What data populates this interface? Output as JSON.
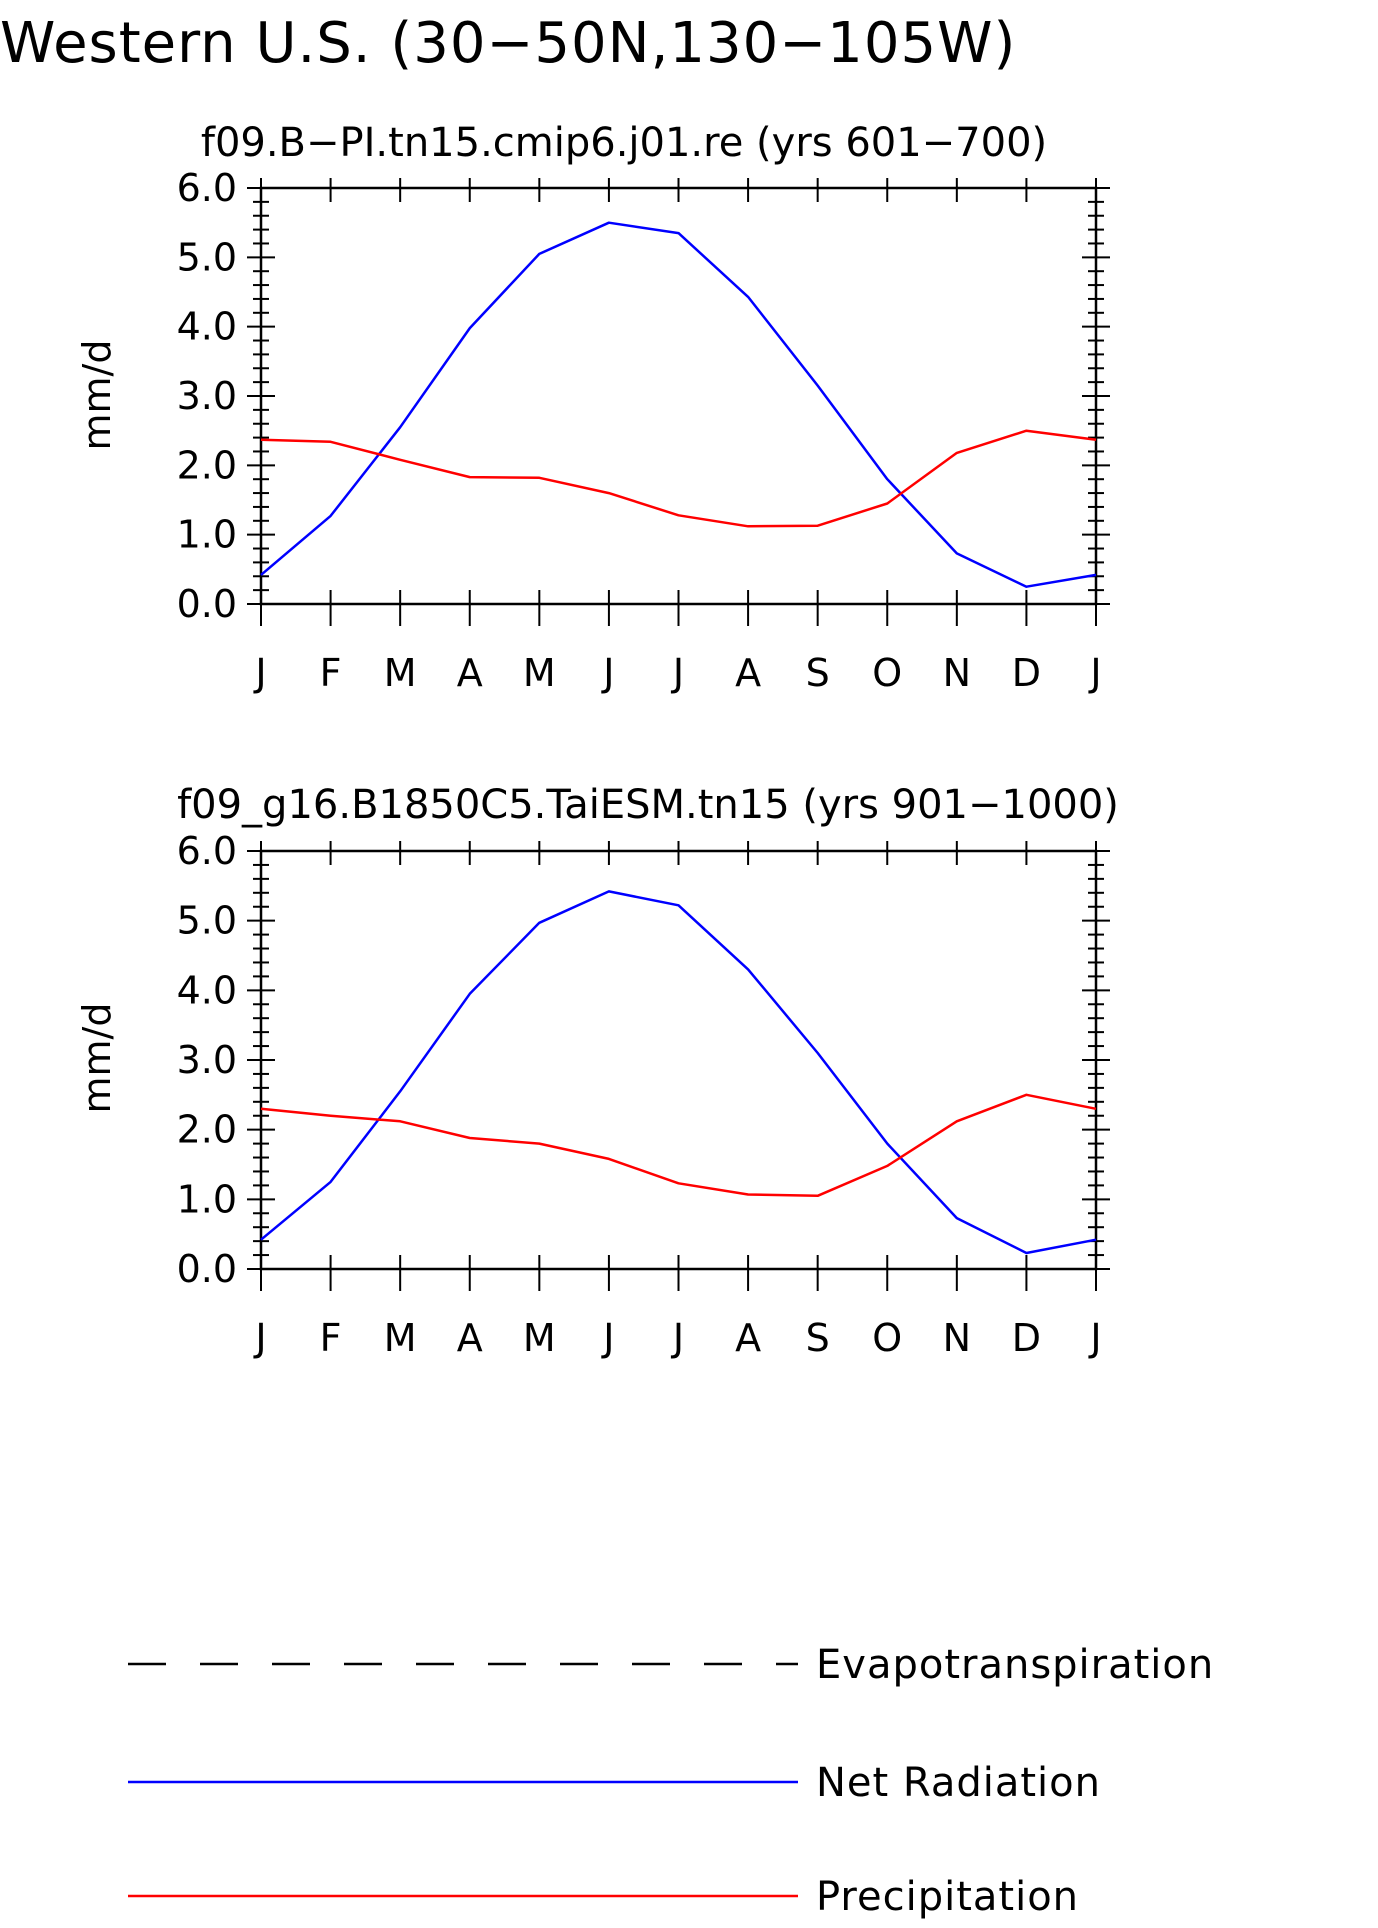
{
  "figure": {
    "title": "Western U.S. (30−50N,130−105W)"
  },
  "legend": [
    {
      "label": "Evapotranspiration",
      "color": "#000000",
      "style": "dashed"
    },
    {
      "label": "Net Radiation",
      "color": "#0000ff",
      "style": "solid"
    },
    {
      "label": "Precipitation",
      "color": "#ff0000",
      "style": "solid"
    }
  ],
  "chart_data": [
    {
      "type": "line",
      "title": "f09.B−PI.tn15.cmip6.j01.re (yrs 601−700)",
      "xlabel": "",
      "ylabel": "mm/d",
      "categories": [
        "J",
        "F",
        "M",
        "A",
        "M",
        "J",
        "J",
        "A",
        "S",
        "O",
        "N",
        "D",
        "J"
      ],
      "ylim": [
        0,
        6
      ],
      "yticks": [
        "0.0",
        "1.0",
        "2.0",
        "3.0",
        "4.0",
        "5.0",
        "6.0"
      ],
      "grid": false,
      "series": [
        {
          "name": "Net Radiation",
          "color": "#0000ff",
          "values": [
            0.42,
            1.27,
            2.55,
            3.98,
            5.05,
            5.5,
            5.35,
            4.43,
            3.15,
            1.8,
            0.73,
            0.25,
            0.42
          ]
        },
        {
          "name": "Precipitation",
          "color": "#ff0000",
          "values": [
            2.37,
            2.34,
            2.08,
            1.83,
            1.82,
            1.6,
            1.28,
            1.12,
            1.13,
            1.45,
            2.18,
            2.5,
            2.37
          ]
        }
      ]
    },
    {
      "type": "line",
      "title": "f09_g16.B1850C5.TaiESM.tn15 (yrs 901−1000)",
      "xlabel": "",
      "ylabel": "mm/d",
      "categories": [
        "J",
        "F",
        "M",
        "A",
        "M",
        "J",
        "J",
        "A",
        "S",
        "O",
        "N",
        "D",
        "J"
      ],
      "ylim": [
        0,
        6
      ],
      "yticks": [
        "0.0",
        "1.0",
        "2.0",
        "3.0",
        "4.0",
        "5.0",
        "6.0"
      ],
      "grid": false,
      "series": [
        {
          "name": "Net Radiation",
          "color": "#0000ff",
          "values": [
            0.42,
            1.25,
            2.55,
            3.95,
            4.97,
            5.42,
            5.22,
            4.3,
            3.1,
            1.8,
            0.73,
            0.23,
            0.42
          ]
        },
        {
          "name": "Precipitation",
          "color": "#ff0000",
          "values": [
            2.3,
            2.2,
            2.12,
            1.88,
            1.8,
            1.58,
            1.23,
            1.07,
            1.05,
            1.48,
            2.12,
            2.5,
            2.3
          ]
        }
      ]
    }
  ]
}
